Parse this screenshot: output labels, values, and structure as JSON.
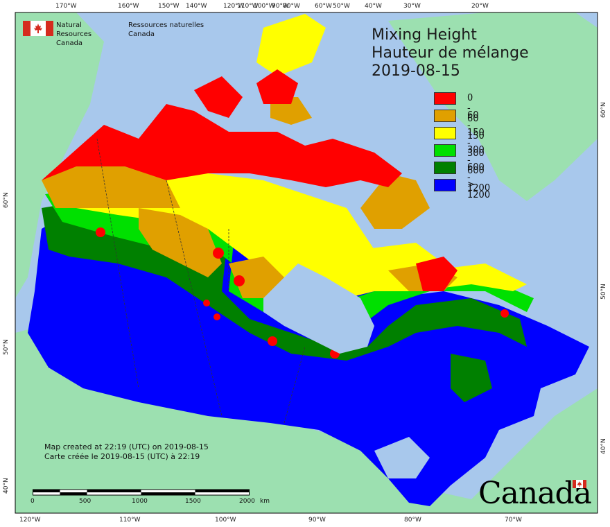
{
  "title": {
    "line1": "Mixing Height",
    "line2": "Hauteur de mélange",
    "date": "2019-08-15"
  },
  "legend": [
    {
      "label": "0 - 60",
      "color": "#ff0000"
    },
    {
      "label": "60 - 150",
      "color": "#e0a000"
    },
    {
      "label": "150 - 300",
      "color": "#ffff00"
    },
    {
      "label": "300 - 600",
      "color": "#00e000"
    },
    {
      "label": "600 - 1200",
      "color": "#008000"
    },
    {
      "label": "> 1200",
      "color": "#0000ff"
    }
  ],
  "agency": {
    "en_line1": "Natural Resources",
    "en_line2": "Canada",
    "fr_line1": "Ressources naturelles",
    "fr_line2": "Canada"
  },
  "credits": {
    "en": "Map created at 22:19 (UTC) on 2019-08-15",
    "fr": "Carte créée le 2019-08-15 (UTC) à 22:19"
  },
  "scalebar": {
    "labels": [
      "0",
      "500",
      "1000",
      "1500",
      "2000"
    ],
    "unit": "km"
  },
  "wordmark": "Canada",
  "graticule": {
    "top": [
      "170°W",
      "160°W",
      "150°W",
      "140°W",
      "120°W",
      "110°W",
      "100°W",
      "90°W",
      "80°W",
      "60°W",
      "50°W",
      "40°W",
      "30°W",
      "20°W"
    ],
    "bottom": [
      "120°W",
      "110°W",
      "100°W",
      "90°W",
      "80°W",
      "70°W"
    ],
    "left": [
      "60°N",
      "50°N",
      "40°N"
    ],
    "right": [
      "60°N",
      "50°N",
      "40°N"
    ]
  },
  "colors": {
    "ocean": "#a8c8ec",
    "land": "#9ce0b0",
    "flag_red": "#d52b1e"
  }
}
